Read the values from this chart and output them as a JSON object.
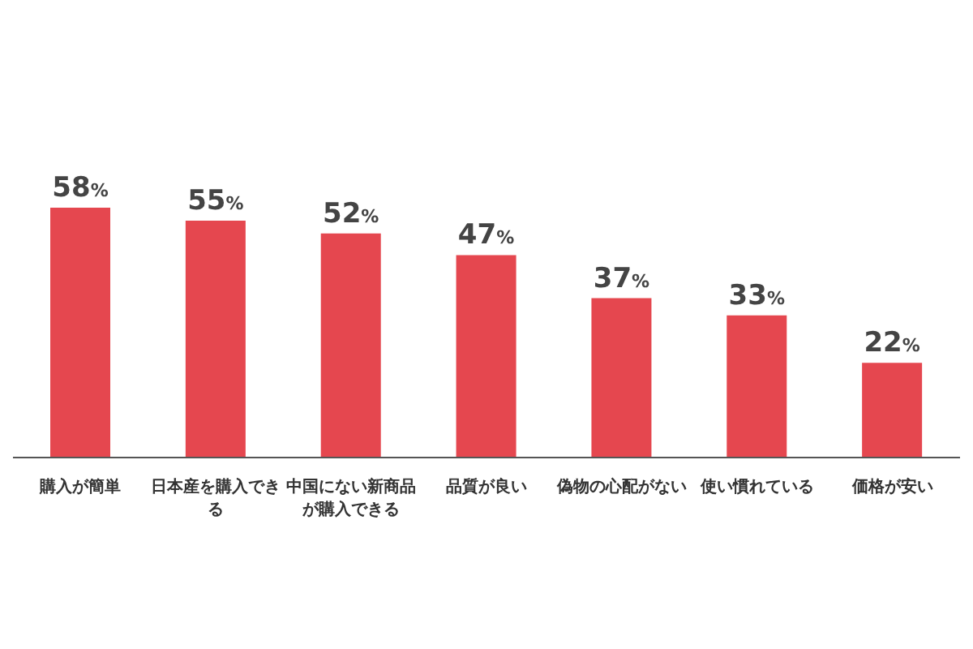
{
  "chart_data": {
    "type": "bar",
    "categories": [
      "購入が簡単",
      "日本産を購入できる",
      "中国にない新商品が購入できる",
      "品質が良い",
      "偽物の心配がない",
      "使い慣れている",
      "価格が安い"
    ],
    "values": [
      58,
      55,
      52,
      47,
      37,
      33,
      22
    ],
    "color": "#e5474f",
    "value_labels": [
      "58%",
      "55%",
      "52%",
      "47%",
      "37%",
      "33%",
      "22%"
    ]
  }
}
